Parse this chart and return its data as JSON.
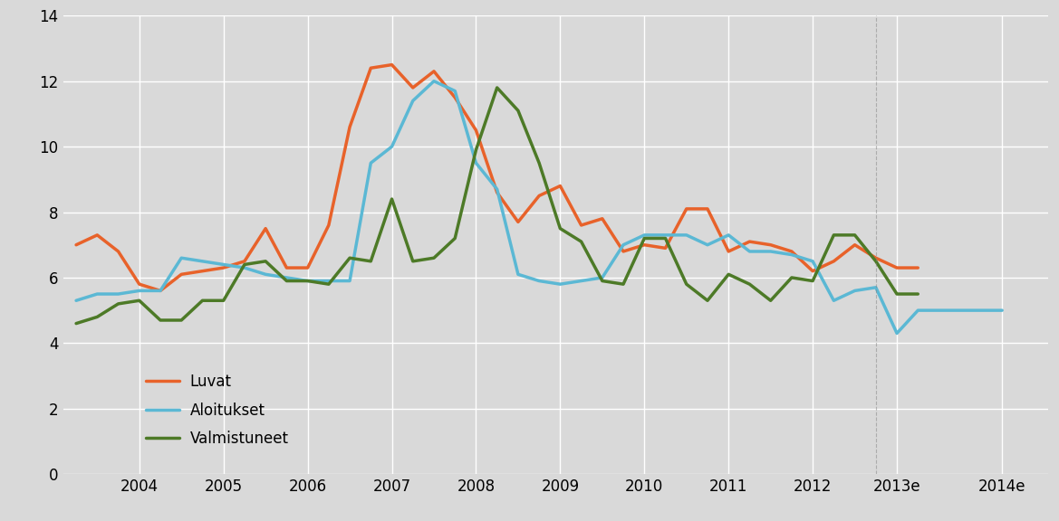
{
  "luvat_x": [
    2003.25,
    2003.5,
    2003.75,
    2004.0,
    2004.25,
    2004.5,
    2004.75,
    2005.0,
    2005.25,
    2005.5,
    2005.75,
    2006.0,
    2006.25,
    2006.5,
    2006.75,
    2007.0,
    2007.25,
    2007.5,
    2007.75,
    2008.0,
    2008.25,
    2008.5,
    2008.75,
    2009.0,
    2009.25,
    2009.5,
    2009.75,
    2010.0,
    2010.25,
    2010.5,
    2010.75,
    2011.0,
    2011.25,
    2011.5,
    2011.75,
    2012.0,
    2012.25,
    2012.5,
    2012.75,
    2013.0,
    2013.25
  ],
  "luvat_y": [
    7.0,
    7.3,
    6.8,
    5.8,
    5.6,
    6.1,
    6.2,
    6.3,
    6.5,
    7.5,
    6.3,
    6.3,
    7.6,
    10.6,
    12.4,
    12.5,
    11.8,
    12.3,
    11.5,
    10.5,
    8.6,
    7.7,
    8.5,
    8.8,
    7.6,
    7.8,
    6.8,
    7.0,
    6.9,
    8.1,
    8.1,
    6.8,
    7.1,
    7.0,
    6.8,
    6.2,
    6.5,
    7.0,
    6.6,
    6.3,
    6.3
  ],
  "aloitukset_x": [
    2003.25,
    2003.5,
    2003.75,
    2004.0,
    2004.25,
    2004.5,
    2004.75,
    2005.0,
    2005.25,
    2005.5,
    2005.75,
    2006.0,
    2006.25,
    2006.5,
    2006.75,
    2007.0,
    2007.25,
    2007.5,
    2007.75,
    2008.0,
    2008.25,
    2008.5,
    2008.75,
    2009.0,
    2009.25,
    2009.5,
    2009.75,
    2010.0,
    2010.25,
    2010.5,
    2010.75,
    2011.0,
    2011.25,
    2011.5,
    2011.75,
    2012.0,
    2012.25,
    2012.5,
    2012.75,
    2013.0,
    2013.25,
    2014.25
  ],
  "aloitukset_y": [
    5.3,
    5.5,
    5.5,
    5.6,
    5.6,
    6.6,
    6.5,
    6.4,
    6.3,
    6.1,
    6.0,
    5.9,
    5.9,
    5.9,
    9.5,
    10.0,
    11.4,
    12.0,
    11.7,
    9.5,
    8.7,
    6.1,
    5.9,
    5.8,
    5.9,
    6.0,
    7.0,
    7.3,
    7.3,
    7.3,
    7.0,
    7.3,
    6.8,
    6.8,
    6.7,
    6.5,
    5.3,
    5.6,
    5.7,
    4.3,
    5.0,
    5.0
  ],
  "valmistuneet_x": [
    2003.25,
    2003.5,
    2003.75,
    2004.0,
    2004.25,
    2004.5,
    2004.75,
    2005.0,
    2005.25,
    2005.5,
    2005.75,
    2006.0,
    2006.25,
    2006.5,
    2006.75,
    2007.0,
    2007.25,
    2007.5,
    2007.75,
    2008.0,
    2008.25,
    2008.5,
    2008.75,
    2009.0,
    2009.25,
    2009.5,
    2009.75,
    2010.0,
    2010.25,
    2010.5,
    2010.75,
    2011.0,
    2011.25,
    2011.5,
    2011.75,
    2012.0,
    2012.25,
    2012.5,
    2012.75,
    2013.0,
    2013.25
  ],
  "valmistuneet_y": [
    4.6,
    4.8,
    5.2,
    5.3,
    4.7,
    4.7,
    5.3,
    5.3,
    6.4,
    6.5,
    5.9,
    5.9,
    5.8,
    6.6,
    6.5,
    8.4,
    6.5,
    6.6,
    7.2,
    9.9,
    11.8,
    11.1,
    9.5,
    7.5,
    7.1,
    5.9,
    5.8,
    7.2,
    7.2,
    5.8,
    5.3,
    6.1,
    5.8,
    5.3,
    6.0,
    5.9,
    7.3,
    7.3,
    6.5,
    5.5,
    5.5
  ],
  "luvat_color": "#E8622A",
  "aloitukset_color": "#5BB8D4",
  "valmistuneet_color": "#4D7A27",
  "background_color": "#D9D9D9",
  "ylim": [
    0,
    14
  ],
  "yticks": [
    0,
    2,
    4,
    6,
    8,
    10,
    12,
    14
  ],
  "xtick_labels": [
    "2004",
    "2005",
    "2006",
    "2007",
    "2008",
    "2009",
    "2010",
    "2011",
    "2012",
    "2013e",
    "2014e"
  ],
  "xtick_positions": [
    2004.0,
    2005.0,
    2006.0,
    2007.0,
    2008.0,
    2009.0,
    2010.0,
    2011.0,
    2012.0,
    2013.0,
    2014.25
  ],
  "legend_labels": [
    "Luvat",
    "Aloitukset",
    "Valmistuneet"
  ],
  "line_width": 2.5,
  "xlim_left": 2003.1,
  "xlim_right": 2014.8
}
